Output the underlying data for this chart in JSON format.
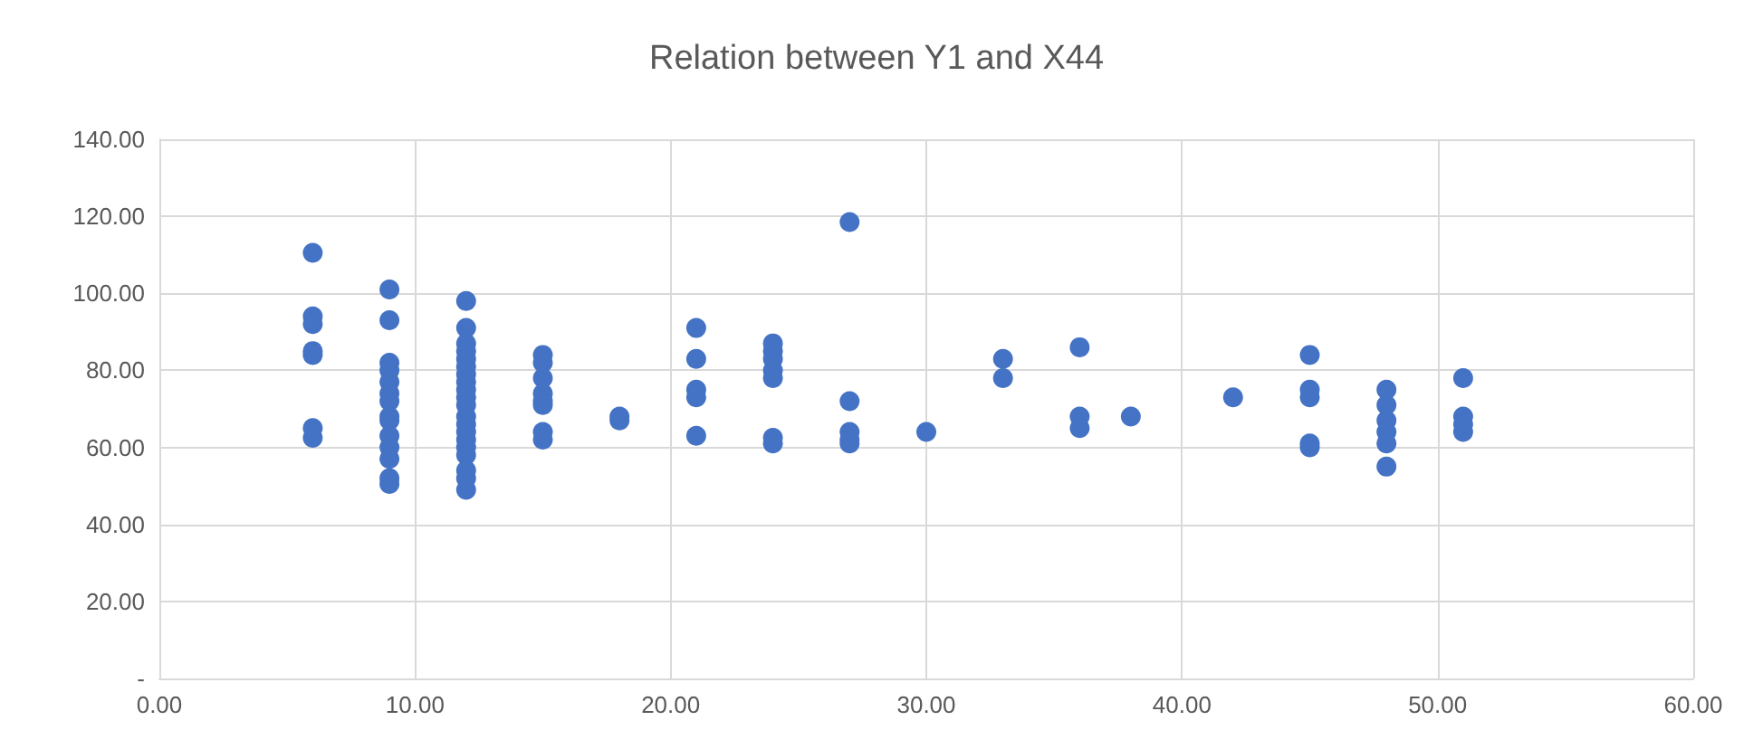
{
  "chart_data": {
    "type": "scatter",
    "title": "Relation between Y1 and X44",
    "x": [
      6,
      6,
      6,
      6,
      6,
      6,
      6,
      9,
      9,
      9,
      9,
      9,
      9,
      9,
      9,
      9,
      9,
      9,
      9,
      9,
      9,
      12,
      12,
      12,
      12,
      12,
      12,
      12,
      12,
      12,
      12,
      12,
      12,
      12,
      12,
      12,
      12,
      12,
      12,
      12,
      12,
      15,
      15,
      15,
      15,
      15,
      15,
      15,
      15,
      18,
      18,
      21,
      21,
      21,
      21,
      21,
      24,
      24,
      24,
      24,
      24,
      24,
      24,
      27,
      27,
      27,
      27,
      27,
      30,
      33,
      33,
      36,
      36,
      36,
      38,
      42,
      45,
      45,
      45,
      45,
      45,
      48,
      48,
      48,
      48,
      48,
      48,
      51,
      51,
      51,
      51
    ],
    "values": [
      110.5,
      94,
      92,
      85,
      84,
      65,
      62.5,
      101,
      93,
      82,
      80,
      77,
      74,
      72,
      68,
      67,
      63,
      60,
      57,
      52,
      50.5,
      98,
      91,
      87,
      85,
      83,
      81,
      79,
      77,
      75,
      73,
      71,
      68,
      66,
      64,
      62,
      60,
      58,
      54,
      52,
      49,
      84,
      82,
      78,
      74,
      72,
      71,
      64,
      62,
      68,
      67,
      91,
      83,
      75,
      73,
      63,
      87,
      85,
      83,
      80,
      78,
      62.5,
      61,
      118.5,
      72,
      64,
      62,
      61,
      64,
      83,
      78,
      86,
      68,
      65,
      68,
      73,
      84,
      75,
      73,
      61,
      60,
      75,
      71,
      67,
      64,
      61,
      55,
      78,
      68,
      66,
      64
    ],
    "color": "#4472c4",
    "marker": "circle",
    "grid": true,
    "xlim": [
      0,
      60
    ],
    "xticks": [
      {
        "value": 0,
        "label": "0.00"
      },
      {
        "value": 10,
        "label": "10.00"
      },
      {
        "value": 20,
        "label": "20.00"
      },
      {
        "value": 30,
        "label": "30.00"
      },
      {
        "value": 40,
        "label": "40.00"
      },
      {
        "value": 50,
        "label": "50.00"
      },
      {
        "value": 60,
        "label": "60.00"
      }
    ],
    "ylim": [
      0,
      140
    ],
    "yticks": [
      {
        "value": 0,
        "label": "-"
      },
      {
        "value": 20,
        "label": "20.00"
      },
      {
        "value": 40,
        "label": "40.00"
      },
      {
        "value": 60,
        "label": "60.00"
      },
      {
        "value": 80,
        "label": "80.00"
      },
      {
        "value": 100,
        "label": "100.00"
      },
      {
        "value": 120,
        "label": "120.00"
      },
      {
        "value": 140,
        "label": "140.00"
      }
    ]
  }
}
